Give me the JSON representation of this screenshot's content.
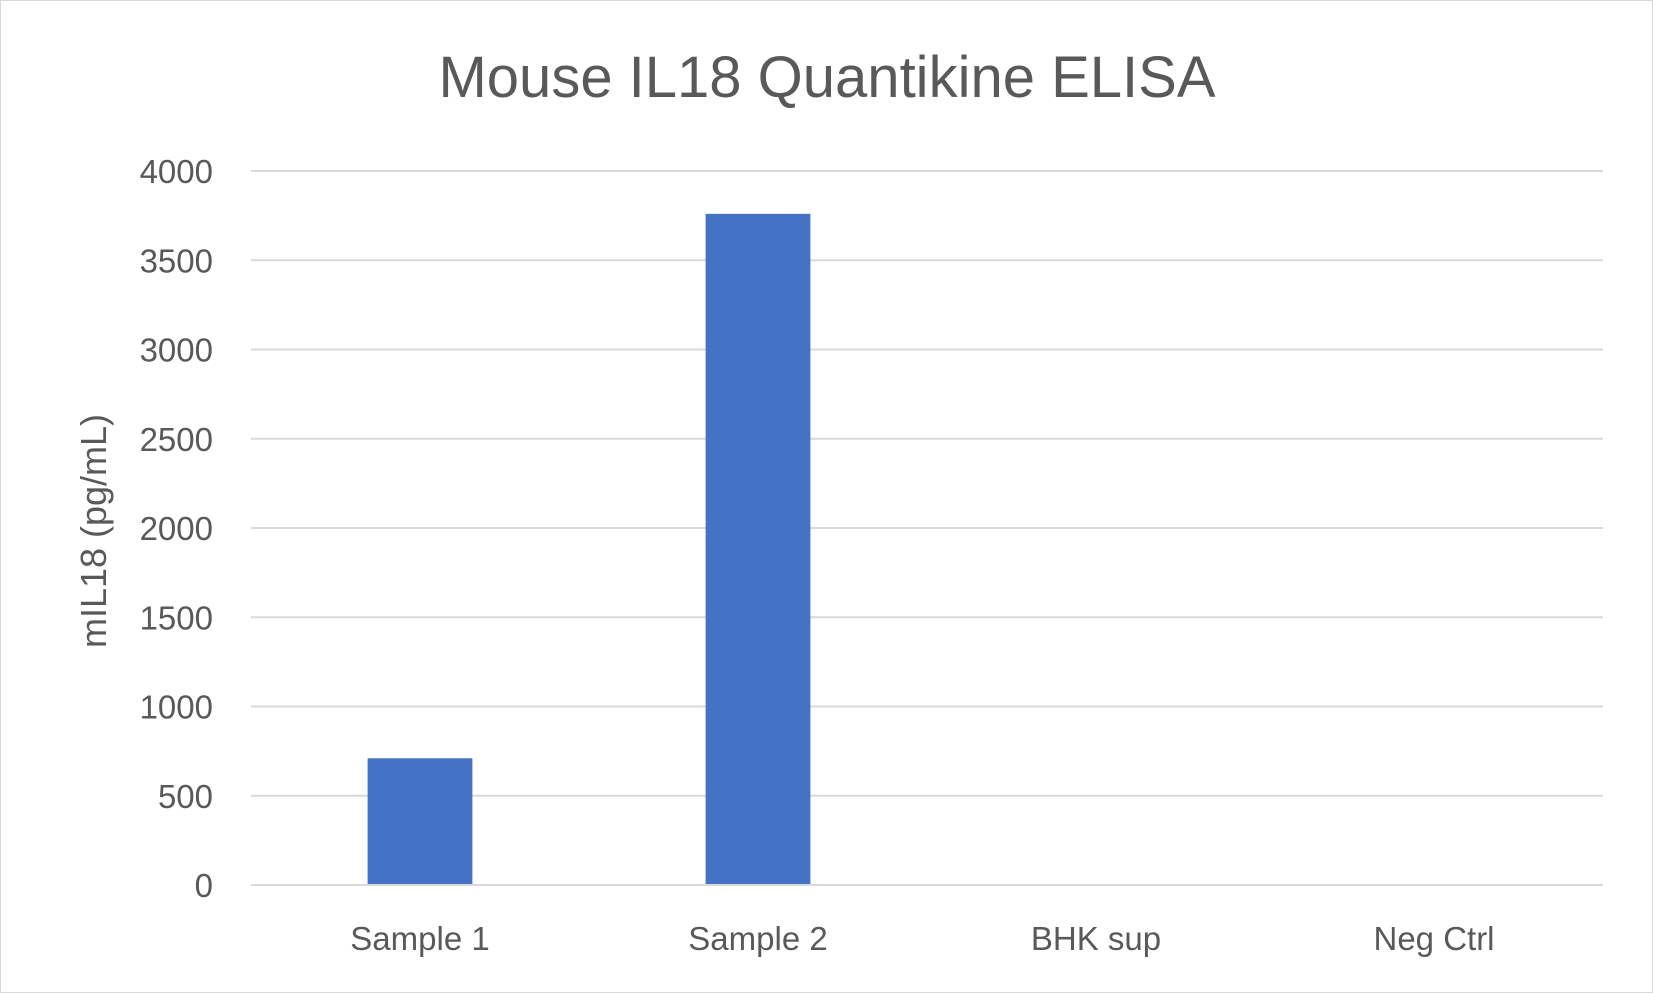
{
  "chart_data": {
    "type": "bar",
    "title": "Mouse IL18 Quantikine ELISA",
    "xlabel": "",
    "ylabel": "mIL18 (pg/mL)",
    "categories": [
      "Sample 1",
      "Sample 2",
      "BHK sup",
      "Neg Ctrl"
    ],
    "values": [
      710,
      3760,
      0,
      0
    ],
    "ylim": [
      0,
      4000
    ],
    "yticks": [
      "0",
      "500",
      "1000",
      "1500",
      "2000",
      "2500",
      "3000",
      "3500",
      "4000"
    ],
    "grid": true,
    "legend": "none",
    "colors": {
      "bar": "#4472c4",
      "text": "#595959",
      "grid": "#d9d9d9"
    }
  }
}
